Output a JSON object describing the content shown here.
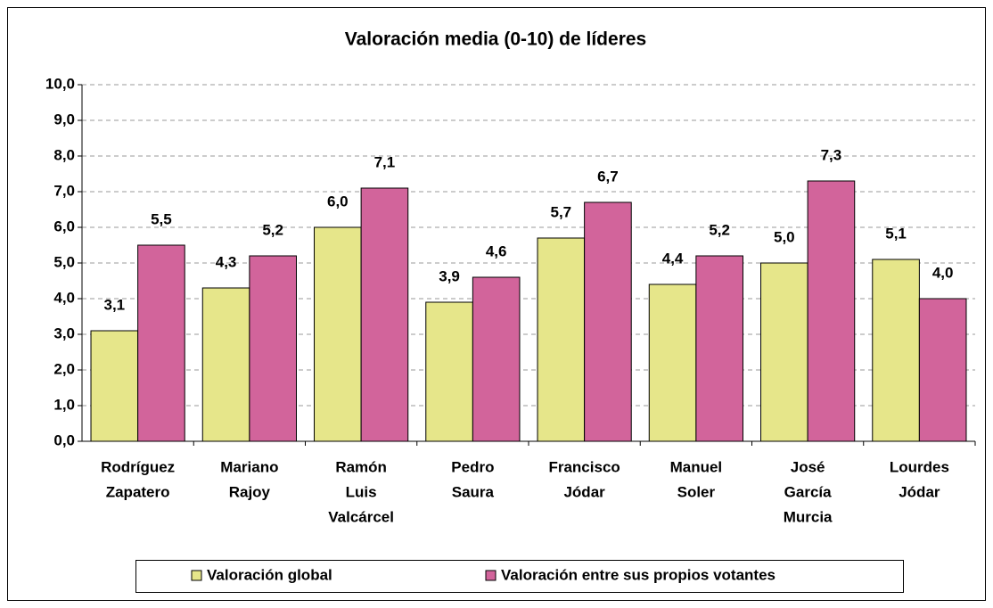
{
  "chart_data": {
    "type": "bar",
    "title": "Valoración media (0-10) de líderes",
    "categories": [
      [
        "Rodríguez",
        "Zapatero"
      ],
      [
        "Mariano",
        "Rajoy"
      ],
      [
        "Ramón",
        "Luis",
        "Valcárcel"
      ],
      [
        "Pedro",
        "Saura"
      ],
      [
        "Francisco",
        "Jódar"
      ],
      [
        "Manuel",
        "Soler"
      ],
      [
        "José",
        "García",
        "Murcia"
      ],
      [
        "Lourdes",
        "Jódar"
      ]
    ],
    "series": [
      {
        "name": "Valoración global",
        "color": "#e6e68a",
        "values": [
          3.1,
          4.3,
          6.0,
          3.9,
          5.7,
          4.4,
          5.0,
          5.1
        ],
        "value_labels": [
          "3,1",
          "4,3",
          "6,0",
          "3,9",
          "5,7",
          "4,4",
          "5,0",
          "5,1"
        ]
      },
      {
        "name": "Valoración entre sus propios votantes",
        "color": "#d2649b",
        "values": [
          5.5,
          5.2,
          7.1,
          4.6,
          6.7,
          5.2,
          7.3,
          4.0
        ],
        "value_labels": [
          "5,5",
          "5,2",
          "7,1",
          "4,6",
          "6,7",
          "5,2",
          "7,3",
          "4,0"
        ]
      }
    ],
    "ylim": [
      0,
      10
    ],
    "yticks": [
      {
        "value": 0,
        "label": "0,0"
      },
      {
        "value": 1,
        "label": "1,0"
      },
      {
        "value": 2,
        "label": "2,0"
      },
      {
        "value": 3,
        "label": "3,0"
      },
      {
        "value": 4,
        "label": "4,0"
      },
      {
        "value": 5,
        "label": "5,0"
      },
      {
        "value": 6,
        "label": "6,0"
      },
      {
        "value": 7,
        "label": "7,0"
      },
      {
        "value": 8,
        "label": "8,0"
      },
      {
        "value": 9,
        "label": "9,0"
      },
      {
        "value": 10,
        "label": "10,0"
      }
    ],
    "grid": true,
    "legend": "bottom"
  }
}
